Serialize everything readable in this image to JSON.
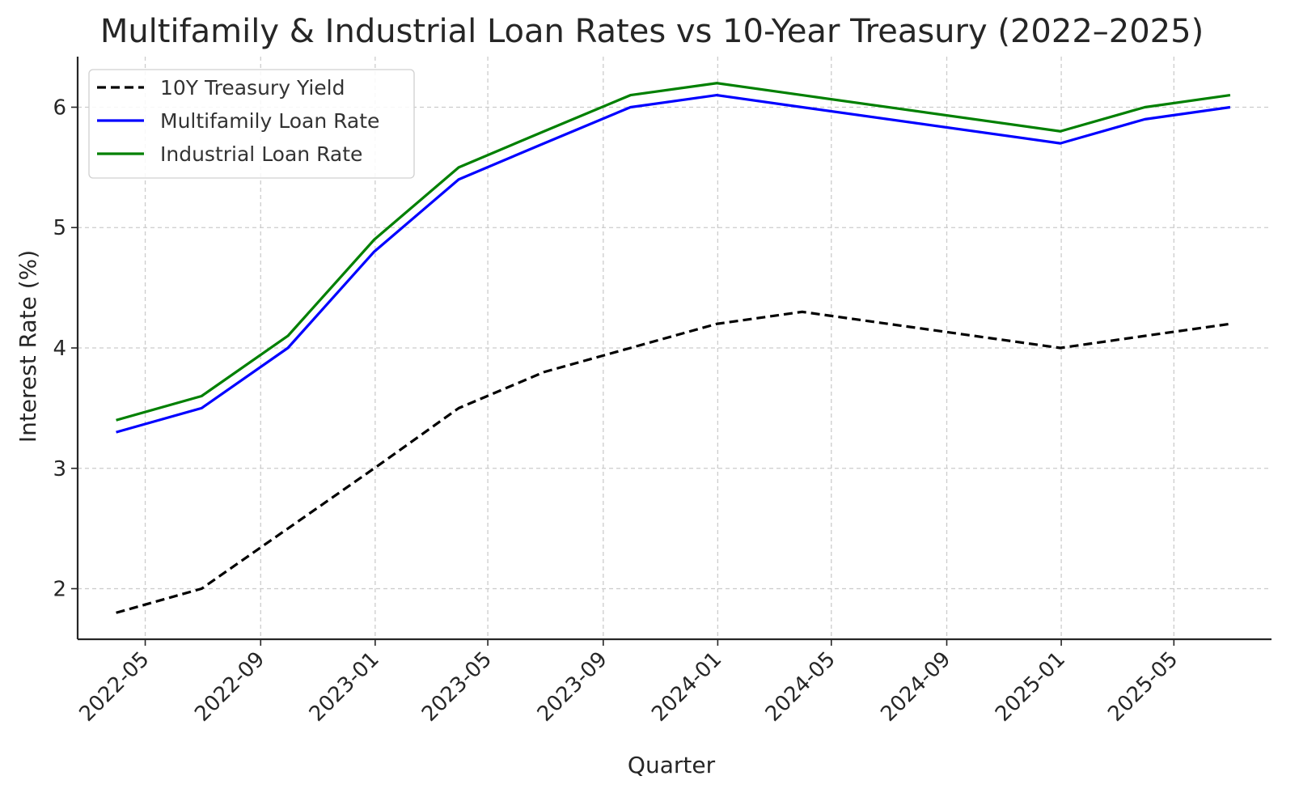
{
  "chart_data": {
    "type": "line",
    "title": "Multifamily & Industrial Loan Rates vs 10-Year Treasury (2022–2025)",
    "xlabel": "Quarter",
    "ylabel": "Interest Rate (%)",
    "x": [
      "2022-03-31",
      "2022-06-30",
      "2022-09-30",
      "2022-12-31",
      "2023-03-31",
      "2023-06-30",
      "2023-09-30",
      "2023-12-31",
      "2024-03-31",
      "2024-12-31",
      "2025-03-31",
      "2025-06-30"
    ],
    "x_ticks": [
      "2022-05",
      "2022-09",
      "2023-01",
      "2023-05",
      "2023-09",
      "2024-01",
      "2024-05",
      "2024-09",
      "2025-01",
      "2025-05"
    ],
    "y_ticks": [
      2,
      3,
      4,
      5,
      6
    ],
    "ylim": [
      1.58,
      6.42
    ],
    "xlim": [
      "2022-02-18",
      "2025-08-13"
    ],
    "grid": true,
    "legend_position": "top-left",
    "series": [
      {
        "name": "10Y Treasury Yield",
        "color": "#000000",
        "style": "dashed",
        "values": [
          1.8,
          2.0,
          2.5,
          3.0,
          3.5,
          3.8,
          4.0,
          4.2,
          4.3,
          4.0,
          4.1,
          4.2
        ]
      },
      {
        "name": "Multifamily Loan Rate",
        "color": "#0000ff",
        "style": "solid",
        "values": [
          3.3,
          3.5,
          4.0,
          4.8,
          5.4,
          5.7,
          6.0,
          6.1,
          6.0,
          5.7,
          5.9,
          6.0
        ]
      },
      {
        "name": "Industrial Loan Rate",
        "color": "#008000",
        "style": "solid",
        "values": [
          3.4,
          3.6,
          4.1,
          4.9,
          5.5,
          5.8,
          6.1,
          6.2,
          6.1,
          5.8,
          6.0,
          6.1
        ]
      }
    ]
  }
}
